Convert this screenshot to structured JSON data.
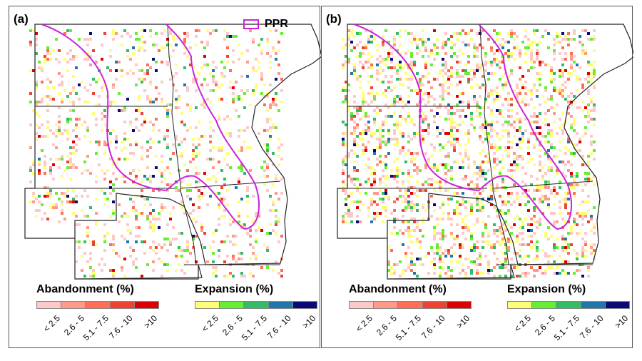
{
  "panels": [
    {
      "label": "(a)",
      "ppr_legend": "PPR"
    },
    {
      "label": "(b)"
    }
  ],
  "ppr_color": "#cc22dd",
  "legend": {
    "abandonment": {
      "title": "Abandonment (%)",
      "classes": [
        "< 2.5",
        "2.6 - 5",
        "5.1 - 7.5",
        "7.6 - 10",
        ">10"
      ],
      "colors": [
        "#ffc8c8",
        "#ff9a88",
        "#ff6e55",
        "#ee4230",
        "#dd0000"
      ]
    },
    "expansion": {
      "title": "Expansion (%)",
      "classes": [
        "< 2.5",
        "2.6 - 5",
        "5.1 - 7.5",
        "7.6 - 10",
        ">10"
      ],
      "colors": [
        "#ffff77",
        "#66ee33",
        "#33bb66",
        "#2277aa",
        "#0a0a77"
      ]
    }
  }
}
